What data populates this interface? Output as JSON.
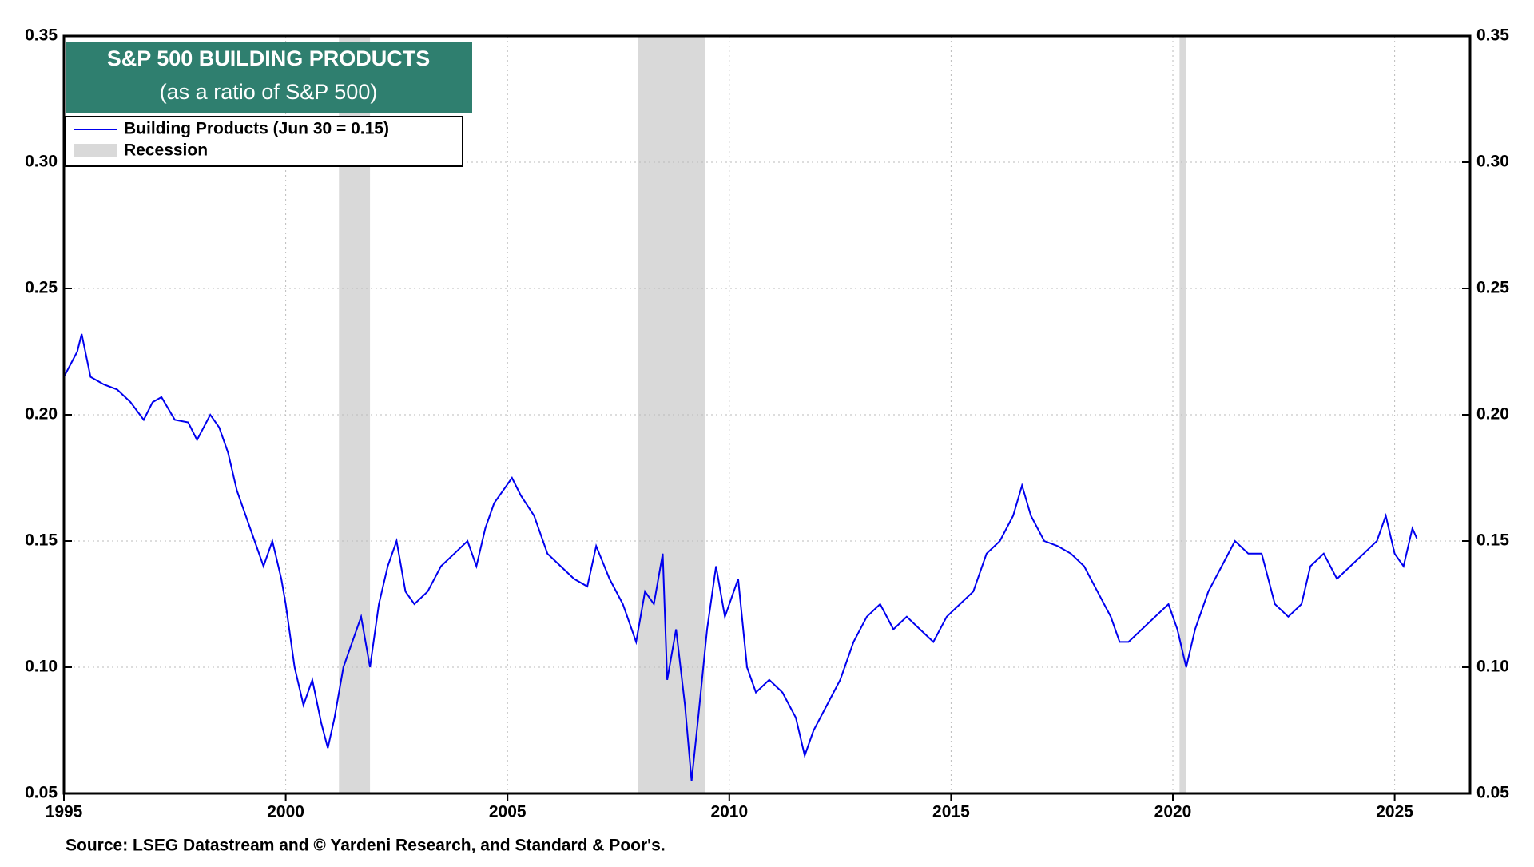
{
  "chart_data": {
    "type": "line",
    "title": "S&P 500 BUILDING PRODUCTS",
    "subtitle": "(as a ratio of S&P 500)",
    "source": "Source: LSEG Datastream and © Yardeni Research, and Standard & Poor's.",
    "xlim": [
      1995,
      2026.7
    ],
    "xticks": [
      1995,
      2000,
      2005,
      2010,
      2015,
      2020,
      2025
    ],
    "ylim": [
      0.05,
      0.35
    ],
    "yticks": [
      0.05,
      {
        "value": 0.1,
        "label": "0.10"
      },
      0.15,
      {
        "value": 0.2,
        "label": "0.20"
      },
      0.25,
      {
        "value": 0.3,
        "label": "0.30"
      },
      0.35
    ],
    "grid": true,
    "recession_label": "Recession",
    "recession_color": "#d9d9d9",
    "recessions": [
      [
        2001.2,
        2001.9
      ],
      [
        2007.95,
        2009.45
      ],
      [
        2020.15,
        2020.3
      ]
    ],
    "x": [
      1995.0,
      1995.3,
      1995.4,
      1995.6,
      1995.9,
      1996.2,
      1996.5,
      1996.8,
      1997.0,
      1997.2,
      1997.5,
      1997.8,
      1998.0,
      1998.3,
      1998.5,
      1998.7,
      1998.9,
      1999.1,
      1999.3,
      1999.5,
      1999.7,
      1999.9,
      2000.0,
      2000.2,
      2000.4,
      2000.6,
      2000.8,
      2000.95,
      2001.1,
      2001.3,
      2001.5,
      2001.7,
      2001.9,
      2002.1,
      2002.3,
      2002.5,
      2002.7,
      2002.9,
      2003.2,
      2003.5,
      2003.8,
      2004.1,
      2004.3,
      2004.5,
      2004.7,
      2004.9,
      2005.1,
      2005.3,
      2005.6,
      2005.9,
      2006.2,
      2006.5,
      2006.8,
      2007.0,
      2007.3,
      2007.6,
      2007.9,
      2008.1,
      2008.3,
      2008.5,
      2008.6,
      2008.8,
      2009.0,
      2009.15,
      2009.3,
      2009.5,
      2009.7,
      2009.9,
      2010.2,
      2010.4,
      2010.6,
      2010.9,
      2011.2,
      2011.5,
      2011.7,
      2011.9,
      2012.2,
      2012.5,
      2012.8,
      2013.1,
      2013.4,
      2013.7,
      2014.0,
      2014.3,
      2014.6,
      2014.9,
      2015.2,
      2015.5,
      2015.8,
      2016.1,
      2016.4,
      2016.6,
      2016.8,
      2017.1,
      2017.4,
      2017.7,
      2018.0,
      2018.3,
      2018.6,
      2018.8,
      2019.0,
      2019.3,
      2019.6,
      2019.9,
      2020.1,
      2020.3,
      2020.5,
      2020.8,
      2021.1,
      2021.4,
      2021.7,
      2022.0,
      2022.3,
      2022.6,
      2022.9,
      2023.1,
      2023.4,
      2023.7,
      2024.0,
      2024.3,
      2024.6,
      2024.8,
      2025.0,
      2025.2,
      2025.4,
      2025.5
    ],
    "series": [
      {
        "name": "Building Products (Jun 30 = 0.15)",
        "color": "#0000ee",
        "values": [
          0.215,
          0.225,
          0.232,
          0.215,
          0.212,
          0.21,
          0.205,
          0.198,
          0.205,
          0.207,
          0.198,
          0.197,
          0.19,
          0.2,
          0.195,
          0.185,
          0.17,
          0.16,
          0.15,
          0.14,
          0.15,
          0.135,
          0.125,
          0.1,
          0.085,
          0.095,
          0.078,
          0.068,
          0.08,
          0.1,
          0.11,
          0.12,
          0.1,
          0.125,
          0.14,
          0.15,
          0.13,
          0.125,
          0.13,
          0.14,
          0.145,
          0.15,
          0.14,
          0.155,
          0.165,
          0.17,
          0.175,
          0.168,
          0.16,
          0.145,
          0.14,
          0.135,
          0.132,
          0.148,
          0.135,
          0.125,
          0.11,
          0.13,
          0.125,
          0.145,
          0.095,
          0.115,
          0.085,
          0.055,
          0.08,
          0.115,
          0.14,
          0.12,
          0.135,
          0.1,
          0.09,
          0.095,
          0.09,
          0.08,
          0.065,
          0.075,
          0.085,
          0.095,
          0.11,
          0.12,
          0.125,
          0.115,
          0.12,
          0.115,
          0.11,
          0.12,
          0.125,
          0.13,
          0.145,
          0.15,
          0.16,
          0.172,
          0.16,
          0.15,
          0.148,
          0.145,
          0.14,
          0.13,
          0.12,
          0.11,
          0.11,
          0.115,
          0.12,
          0.125,
          0.115,
          0.1,
          0.115,
          0.13,
          0.14,
          0.15,
          0.145,
          0.145,
          0.125,
          0.12,
          0.125,
          0.14,
          0.145,
          0.135,
          0.14,
          0.145,
          0.15,
          0.16,
          0.145,
          0.14,
          0.155,
          0.151
        ]
      }
    ]
  }
}
